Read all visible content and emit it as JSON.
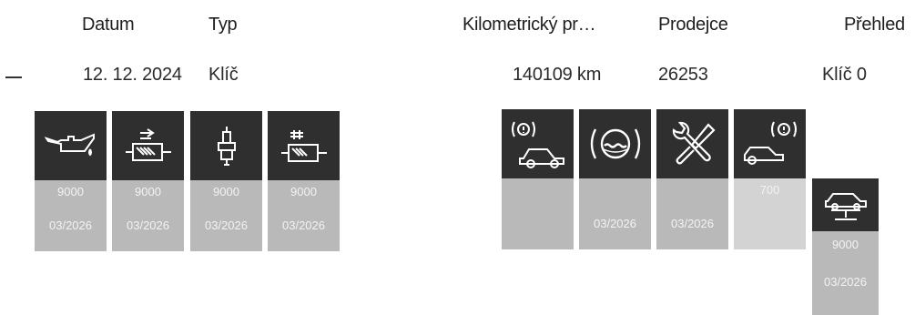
{
  "columns": {
    "date": "Datum",
    "type": "Typ",
    "mileage": "Kilometrický pr…",
    "dealer": "Prodejce",
    "overview": "Přehled"
  },
  "row": {
    "date": "12. 12. 2024",
    "type": "Klíč",
    "mileage": "140109 km",
    "dealer": "26253",
    "overview": "Klíč 0"
  },
  "tiles": [
    {
      "icon": "engine-oil-icon",
      "value": "9000",
      "date": "03/2026"
    },
    {
      "icon": "particle-filter-icon",
      "value": "9000",
      "date": "03/2026"
    },
    {
      "icon": "spark-plug-icon",
      "value": "9000",
      "date": "03/2026"
    },
    {
      "icon": "fuel-filter-icon",
      "value": "9000",
      "date": "03/2026"
    },
    {
      "icon": "vehicle-check-icon",
      "value": "",
      "date": ""
    },
    {
      "icon": "brake-fluid-icon",
      "value": "",
      "date": "03/2026"
    },
    {
      "icon": "service-tools-icon",
      "value": "",
      "date": "03/2026"
    },
    {
      "icon": "vehicle-inspection-icon",
      "value": "700",
      "date": ""
    },
    {
      "icon": "car-lift-icon",
      "value": "9000",
      "date": "03/2026"
    }
  ]
}
